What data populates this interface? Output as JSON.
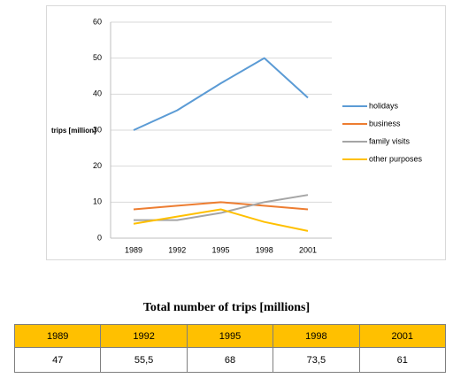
{
  "chart_data": {
    "type": "line",
    "ylabel": "trips [million]",
    "xlabel": "",
    "categories": [
      "1989",
      "1992",
      "1995",
      "1998",
      "2001"
    ],
    "ylim": [
      0,
      60
    ],
    "yticks": [
      0,
      10,
      20,
      30,
      40,
      50,
      60
    ],
    "grid": true,
    "legend_position": "right",
    "series": [
      {
        "name": "holidays",
        "color": "#5b9bd5",
        "values": [
          30,
          35.5,
          43,
          50,
          39
        ]
      },
      {
        "name": "business",
        "color": "#ed7d31",
        "values": [
          8,
          9,
          10,
          9,
          8
        ]
      },
      {
        "name": "family visits",
        "color": "#a5a5a5",
        "values": [
          5,
          5,
          7,
          10,
          12
        ]
      },
      {
        "name": "other purposes",
        "color": "#ffc000",
        "values": [
          4,
          6,
          8,
          4.5,
          2
        ]
      }
    ]
  },
  "table": {
    "title": "Total number of trips [millions]",
    "headers": [
      "1989",
      "1992",
      "1995",
      "1998",
      "2001"
    ],
    "values": [
      "47",
      "55,5",
      "68",
      "73,5",
      "61"
    ],
    "header_color": "#ffc000"
  }
}
